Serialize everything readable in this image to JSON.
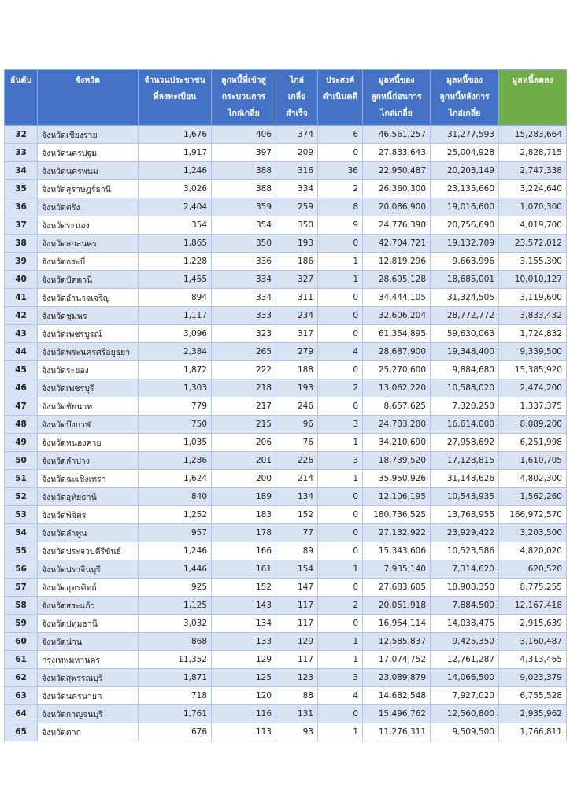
{
  "table": {
    "header": [
      [
        "อันดับ"
      ],
      [
        "จังหวัด"
      ],
      [
        "จำนวนประชาชน",
        "ที่ลงทะเบียน"
      ],
      [
        "ลูกหนี้ที่เข้าสู่",
        "กระบวนการ",
        "ไกล่เกลี่ย"
      ],
      [
        "ไกล่",
        "เกลี่ย",
        "สำเร็จ"
      ],
      [
        "ประสงค์",
        "ดำเนินคดี"
      ],
      [
        "มูลหนี้ของ",
        "ลูกหนี้ก่อนการ",
        "ไกล่เกลี่ย"
      ],
      [
        "มูลหนี้ของ",
        "ลูกหนี้หลังการ",
        "ไกล่เกลี่ย"
      ],
      [
        "มูลหนี้ลดลง"
      ]
    ],
    "rows": [
      [
        "32",
        "จังหวัดเชียงราย",
        "1,676",
        "406",
        "374",
        "6",
        "46,561,257",
        "31,277,593",
        "15,283,664"
      ],
      [
        "33",
        "จังหวัดนครปฐม",
        "1,917",
        "397",
        "209",
        "0",
        "27,833,643",
        "25,004,928",
        "2,828,715"
      ],
      [
        "34",
        "จังหวัดนครพนม",
        "1,246",
        "388",
        "316",
        "36",
        "22,950,487",
        "20,203,149",
        "2,747,338"
      ],
      [
        "35",
        "จังหวัดสุราษฎร์ธานี",
        "3,026",
        "388",
        "334",
        "2",
        "26,360,300",
        "23,135,660",
        "3,224,640"
      ],
      [
        "36",
        "จังหวัดตรัง",
        "2,404",
        "359",
        "259",
        "8",
        "20,086,900",
        "19,016,600",
        "1,070,300"
      ],
      [
        "37",
        "จังหวัดระนอง",
        "354",
        "354",
        "350",
        "9",
        "24,776,390",
        "20,756,690",
        "4,019,700"
      ],
      [
        "38",
        "จังหวัดสกลนคร",
        "1,865",
        "350",
        "193",
        "0",
        "42,704,721",
        "19,132,709",
        "23,572,012"
      ],
      [
        "39",
        "จังหวัดกระบี่",
        "1,228",
        "336",
        "186",
        "1",
        "12,819,296",
        "9,663,996",
        "3,155,300"
      ],
      [
        "40",
        "จังหวัดปัตตานี",
        "1,455",
        "334",
        "327",
        "1",
        "28,695,128",
        "18,685,001",
        "10,010,127"
      ],
      [
        "41",
        "จังหวัดอำนาจเจริญ",
        "894",
        "334",
        "311",
        "0",
        "34,444,105",
        "31,324,505",
        "3,119,600"
      ],
      [
        "42",
        "จังหวัดชุมพร",
        "1,117",
        "333",
        "234",
        "0",
        "32,606,204",
        "28,772,772",
        "3,833,432"
      ],
      [
        "43",
        "จังหวัดเพชรบูรณ์",
        "3,096",
        "323",
        "317",
        "0",
        "61,354,895",
        "59,630,063",
        "1,724,832"
      ],
      [
        "44",
        "จังหวัดพระนครศรีอยุธยา",
        "2,384",
        "265",
        "279",
        "4",
        "28,687,900",
        "19,348,400",
        "9,339,500"
      ],
      [
        "45",
        "จังหวัดระยอง",
        "1,872",
        "222",
        "188",
        "0",
        "25,270,600",
        "9,884,680",
        "15,385,920"
      ],
      [
        "46",
        "จังหวัดเพชรบุรี",
        "1,303",
        "218",
        "193",
        "2",
        "13,062,220",
        "10,588,020",
        "2,474,200"
      ],
      [
        "47",
        "จังหวัดชัยนาท",
        "779",
        "217",
        "246",
        "0",
        "8,657,625",
        "7,320,250",
        "1,337,375"
      ],
      [
        "48",
        "จังหวัดบึงกาฬ",
        "750",
        "215",
        "96",
        "3",
        "24,703,200",
        "16,614,000",
        "8,089,200"
      ],
      [
        "49",
        "จังหวัดหนองคาย",
        "1,035",
        "206",
        "76",
        "1",
        "34,210,690",
        "27,958,692",
        "6,251,998"
      ],
      [
        "50",
        "จังหวัดลำปาง",
        "1,286",
        "201",
        "226",
        "3",
        "18,739,520",
        "17,128,815",
        "1,610,705"
      ],
      [
        "51",
        "จังหวัดฉะเชิงเทรา",
        "1,624",
        "200",
        "214",
        "1",
        "35,950,926",
        "31,148,626",
        "4,802,300"
      ],
      [
        "52",
        "จังหวัดอุทัยธานี",
        "840",
        "189",
        "134",
        "0",
        "12,106,195",
        "10,543,935",
        "1,562,260"
      ],
      [
        "53",
        "จังหวัดพิจิตร",
        "1,252",
        "183",
        "152",
        "0",
        "180,736,525",
        "13,763,955",
        "166,972,570"
      ],
      [
        "54",
        "จังหวัดลำพูน",
        "957",
        "178",
        "77",
        "0",
        "27,132,922",
        "23,929,422",
        "3,203,500"
      ],
      [
        "55",
        "จังหวัดประจวบคีรีขันธ์",
        "1,246",
        "166",
        "89",
        "0",
        "15,343,606",
        "10,523,586",
        "4,820,020"
      ],
      [
        "56",
        "จังหวัดปราจีนบุรี",
        "1,446",
        "161",
        "154",
        "1",
        "7,935,140",
        "7,314,620",
        "620,520"
      ],
      [
        "57",
        "จังหวัดอุตรดิตถ์",
        "925",
        "152",
        "147",
        "0",
        "27,683,605",
        "18,908,350",
        "8,775,255"
      ],
      [
        "58",
        "จังหวัดสระแก้ว",
        "1,125",
        "143",
        "117",
        "2",
        "20,051,918",
        "7,884,500",
        "12,167,418"
      ],
      [
        "59",
        "จังหวัดปทุมธานี",
        "3,032",
        "134",
        "117",
        "0",
        "16,954,114",
        "14,038,475",
        "2,915,639"
      ],
      [
        "60",
        "จังหวัดน่าน",
        "868",
        "133",
        "129",
        "1",
        "12,585,837",
        "9,425,350",
        "3,160,487"
      ],
      [
        "61",
        "กรุงเทพมหานคร",
        "11,352",
        "129",
        "117",
        "1",
        "17,074,752",
        "12,761,287",
        "4,313,465"
      ],
      [
        "62",
        "จังหวัดสุพรรณบุรี",
        "1,871",
        "125",
        "123",
        "3",
        "23,089,879",
        "14,066,500",
        "9,023,379"
      ],
      [
        "63",
        "จังหวัดนครนายก",
        "718",
        "120",
        "88",
        "4",
        "14,682,548",
        "7,927,020",
        "6,755,528"
      ],
      [
        "64",
        "จังหวัดกาญจนบุรี",
        "1,761",
        "116",
        "131",
        "0",
        "15,496,762",
        "12,560,800",
        "2,935,962"
      ],
      [
        "65",
        "จังหวัดตาก",
        "676",
        "113",
        "93",
        "1",
        "11,276,311",
        "9,509,500",
        "1,766,811"
      ]
    ]
  }
}
